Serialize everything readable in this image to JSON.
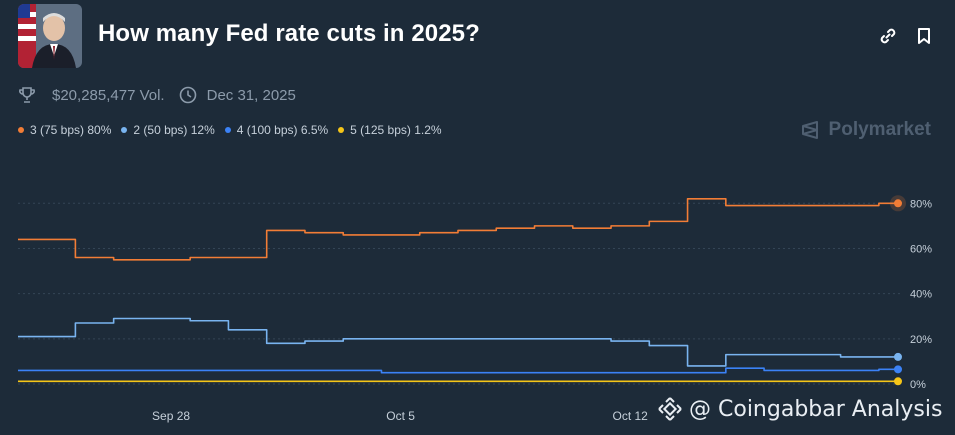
{
  "header": {
    "title": "How many Fed rate cuts in 2025?"
  },
  "meta": {
    "volume": "$20,285,477 Vol.",
    "end_date": "Dec 31, 2025"
  },
  "legend": [
    {
      "label": "3 (75 bps) 80%",
      "color": "#f27d36"
    },
    {
      "label": "2 (50 bps) 12%",
      "color": "#79b4f0"
    },
    {
      "label": "4 (100 bps) 6.5%",
      "color": "#3b82f6"
    },
    {
      "label": "5 (125 bps) 1.2%",
      "color": "#f5c518"
    }
  ],
  "brand": "Polymarket",
  "watermark": "@ Coingabbar Analysis",
  "chart_data": {
    "type": "line",
    "x": [
      "Sep 22",
      "Sep 24",
      "Sep 25",
      "Sep 26",
      "Sep 28",
      "Sep 30",
      "Oct 1",
      "Oct 2",
      "Oct 3",
      "Oct 4",
      "Oct 5",
      "Oct 6",
      "Oct 8",
      "Oct 9",
      "Oct 10",
      "Oct 11",
      "Oct 12",
      "Oct 13",
      "Oct 14",
      "Oct 15",
      "Oct 16",
      "Oct 17",
      "Oct 18",
      "Oct 19"
    ],
    "x_ticks": [
      "Sep 28",
      "Oct 5",
      "Oct 12"
    ],
    "y_ticks": [
      "0%",
      "20%",
      "40%",
      "60%",
      "80%"
    ],
    "ylim": [
      0,
      85
    ],
    "series": [
      {
        "name": "3 (75 bps)",
        "color": "#f27d36",
        "values": [
          64,
          64,
          56,
          55,
          55,
          56,
          56,
          68,
          67,
          66,
          66,
          67,
          68,
          69,
          70,
          69,
          70,
          72,
          82,
          79,
          79,
          79,
          79,
          80
        ]
      },
      {
        "name": "2 (50 bps)",
        "color": "#79b4f0",
        "values": [
          21,
          21,
          27,
          29,
          29,
          28,
          24,
          18,
          19,
          20,
          20,
          20,
          20,
          20,
          20,
          20,
          19,
          17,
          8,
          13,
          13,
          13,
          12,
          12
        ]
      },
      {
        "name": "4 (100 bps)",
        "color": "#3b82f6",
        "values": [
          6,
          6,
          6,
          6,
          6,
          6,
          6,
          6,
          6,
          6,
          5,
          5,
          5,
          5,
          5,
          5,
          5,
          5,
          5,
          7,
          6,
          6,
          6,
          6.5
        ]
      },
      {
        "name": "5 (125 bps)",
        "color": "#f5c518",
        "values": [
          1.2,
          1.2,
          1.2,
          1.2,
          1.2,
          1.2,
          1.2,
          1.2,
          1.2,
          1.2,
          1.2,
          1.2,
          1.2,
          1.2,
          1.2,
          1.2,
          1.2,
          1.2,
          1.2,
          1.2,
          1.2,
          1.2,
          1.2,
          1.2
        ]
      }
    ],
    "grid": true,
    "legend_position": "top-left"
  }
}
